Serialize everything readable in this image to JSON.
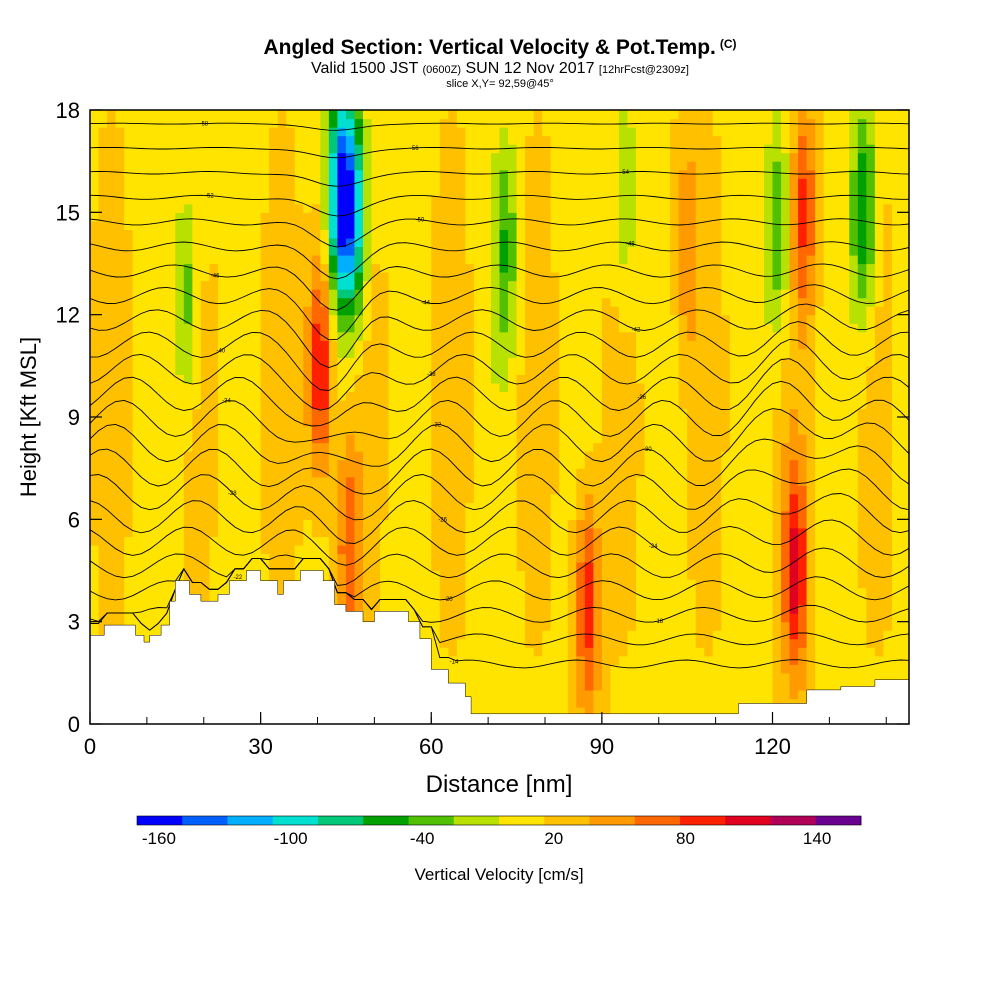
{
  "header": {
    "title": "Angled Section: Vertical Velocity & Pot.Temp.",
    "title_units": "(C)",
    "valid_prefix": "Valid 1500 JST",
    "valid_zulu": "(0600Z)",
    "valid_date": "SUN 12 Nov 2017",
    "forecast": "[12hrFcst@2309z]",
    "slice": "slice X,Y= 92,59@45°"
  },
  "chart_data": {
    "type": "heatmap",
    "xlabel": "Distance [nm]",
    "ylabel": "Height [Kft MSL]",
    "xlim": [
      0,
      144
    ],
    "ylim": [
      0,
      18
    ],
    "x_ticks": [
      "0",
      "30",
      "60",
      "90",
      "120"
    ],
    "x_tick_values": [
      0,
      30,
      60,
      90,
      120
    ],
    "y_ticks": [
      "0",
      "3",
      "6",
      "9",
      "12",
      "15",
      "18"
    ],
    "y_tick_values": [
      0,
      3,
      6,
      9,
      12,
      15,
      18
    ],
    "colorbar": {
      "label": "Vertical Velocity [cm/s]",
      "range": [
        -170,
        160
      ],
      "step": 20,
      "tick_labels": [
        "-160",
        "-100",
        "-40",
        "20",
        "80",
        "140"
      ],
      "tick_values": [
        -160,
        -100,
        -40,
        20,
        80,
        140
      ],
      "colors": [
        "#0000ff",
        "#0060ff",
        "#00b0ff",
        "#00e0d0",
        "#00c878",
        "#00a000",
        "#50c000",
        "#b8e000",
        "#ffe400",
        "#ffc000",
        "#ff9a00",
        "#ff6800",
        "#ff2000",
        "#e00020",
        "#b00058",
        "#6a0090"
      ]
    },
    "terrain_profile": [
      [
        0,
        2.6
      ],
      [
        2.5,
        2.9
      ],
      [
        8,
        2.6
      ],
      [
        9.5,
        2.4
      ],
      [
        10.5,
        2.6
      ],
      [
        12.5,
        2.9
      ],
      [
        14,
        3.6
      ],
      [
        15,
        4.2
      ],
      [
        17.5,
        3.8
      ],
      [
        19.5,
        3.6
      ],
      [
        22.5,
        3.8
      ],
      [
        24.5,
        4.2
      ],
      [
        27.5,
        4.5
      ],
      [
        30,
        4.2
      ],
      [
        33,
        3.8
      ],
      [
        34,
        4.2
      ],
      [
        37,
        4.5
      ],
      [
        41,
        4.2
      ],
      [
        43,
        3.5
      ],
      [
        45,
        3.3
      ],
      [
        48,
        3.0
      ],
      [
        50,
        3.3
      ],
      [
        56,
        3.0
      ],
      [
        58,
        2.5
      ],
      [
        60,
        1.6
      ],
      [
        63,
        1.2
      ],
      [
        66,
        0.8
      ],
      [
        67,
        0.3
      ],
      [
        78,
        0.3
      ],
      [
        82,
        0.3
      ],
      [
        113,
        0.3
      ],
      [
        114,
        0.6
      ],
      [
        120,
        0.6
      ],
      [
        125,
        0.6
      ],
      [
        126,
        1.0
      ],
      [
        132,
        1.1
      ],
      [
        138,
        1.3
      ],
      [
        144,
        1.3
      ]
    ],
    "updraft_cores": [
      {
        "x": 40.5,
        "y": 10.5,
        "w": 96
      },
      {
        "x": 45.5,
        "y": 5.2,
        "w": 60
      },
      {
        "x": 87.5,
        "y": 3.5,
        "w": 76
      },
      {
        "x": 124,
        "y": 4.5,
        "w": 90
      },
      {
        "x": 125.5,
        "y": 15.0,
        "w": 66
      },
      {
        "x": 105,
        "y": 14.0,
        "w": 40
      }
    ],
    "downdraft_cores": [
      {
        "x": 44,
        "y": 15.5,
        "w": -150
      },
      {
        "x": 46.5,
        "y": 15.0,
        "w": -110
      },
      {
        "x": 17,
        "y": 12.5,
        "w": -50
      },
      {
        "x": 73,
        "y": 14.0,
        "w": -55
      },
      {
        "x": 94,
        "y": 15.5,
        "w": -40
      },
      {
        "x": 121,
        "y": 14.5,
        "w": -60
      },
      {
        "x": 136,
        "y": 15.0,
        "w": -80
      }
    ],
    "isentrope_labels": [
      "-58",
      "-56",
      "-54",
      "-52",
      "-50",
      "-48",
      "-46",
      "-44",
      "-42",
      "-40",
      "-38",
      "-36",
      "-34",
      "-32",
      "-30",
      "-28",
      "-26",
      "-24",
      "-22",
      "-20",
      "-18",
      "-16",
      "-14"
    ]
  }
}
